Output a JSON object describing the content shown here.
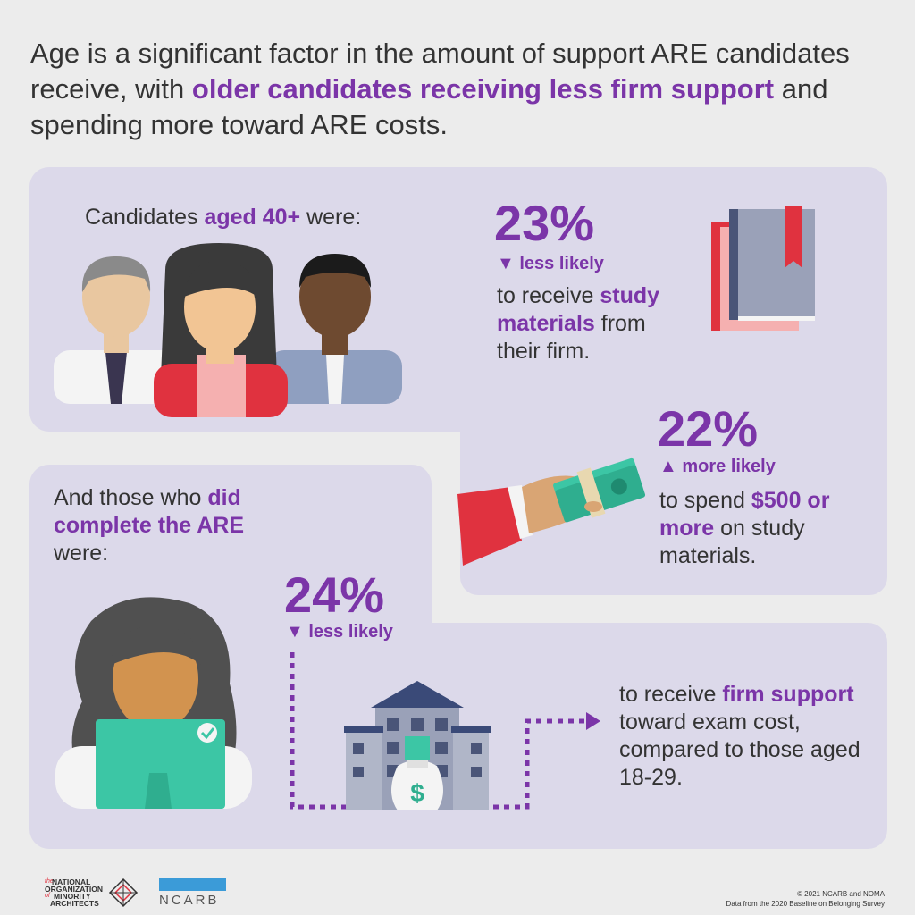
{
  "headline": {
    "part1": "Age is a significant factor in the amount of support ARE candidates receive, with ",
    "highlight1": "older candidates receiving less firm support",
    "part2": " and spending more toward ARE costs."
  },
  "section1": {
    "intro_plain": "Candidates ",
    "intro_highlight": "aged 40+",
    "intro_end": " were:"
  },
  "stat1": {
    "value": "23%",
    "direction": "▼ less likely",
    "desc_plain1": "to receive ",
    "desc_highlight": "study materials",
    "desc_plain2": " from their firm."
  },
  "stat2": {
    "value": "22%",
    "direction": "▲ more likely",
    "desc_plain1": "to spend ",
    "desc_highlight": "$500 or more",
    "desc_plain2": " on study materials."
  },
  "section2": {
    "intro_plain": "And those who ",
    "intro_highlight": "did complete the ARE",
    "intro_end": " were:"
  },
  "stat3": {
    "value": "24%",
    "direction": "▼ less likely",
    "desc_plain1": "to receive ",
    "desc_highlight": "firm support",
    "desc_plain2": " toward exam cost, compared to those aged 18-29."
  },
  "footer": {
    "noma_the": "the",
    "noma_line1": "NATIONAL",
    "noma_line2": "ORGANIZATION",
    "noma_line3": "MINORITY",
    "noma_line4": "ARCHITECTS",
    "noma_of": "of",
    "ncarb": "NCARB",
    "copyright": "© 2021 NCARB and NOMA",
    "source": "Data from the 2020 Baseline on Belonging Survey"
  },
  "colors": {
    "accent": "#7b35a8",
    "panel": "#dcd9ea",
    "background": "#ececec",
    "ncarb_blue": "#3b9bd8"
  }
}
